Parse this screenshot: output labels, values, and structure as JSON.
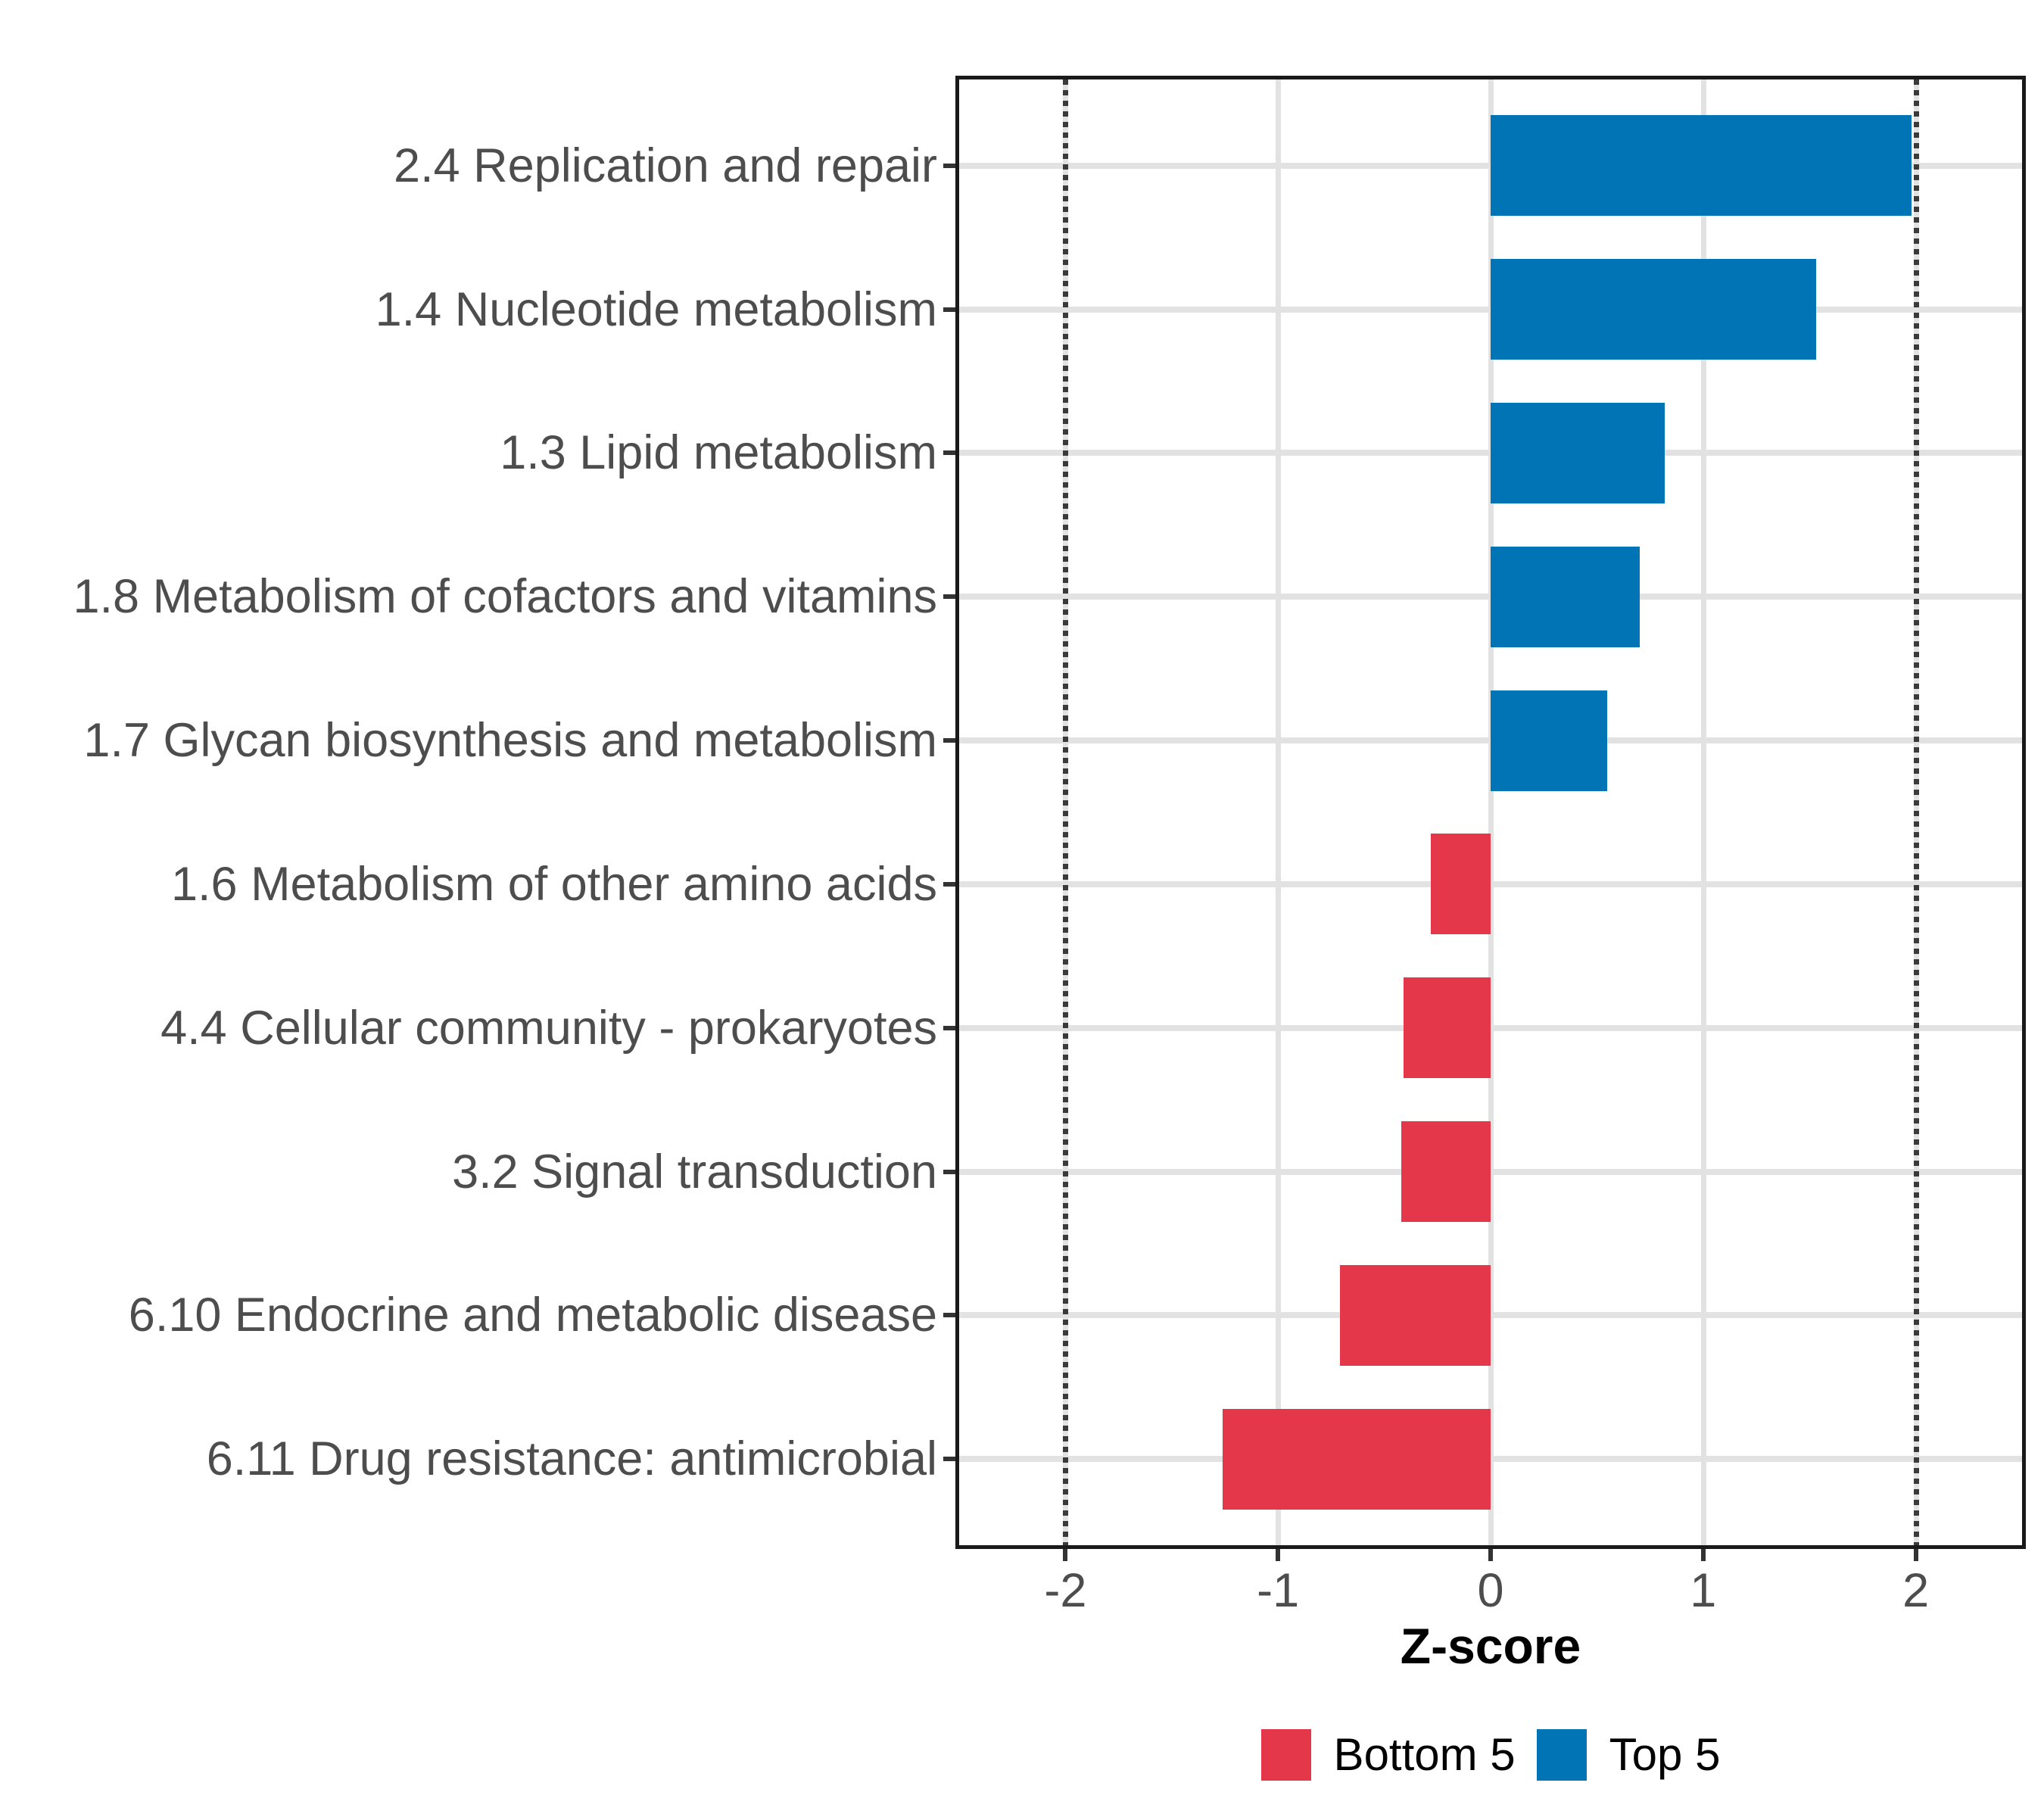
{
  "chart_data": {
    "type": "bar",
    "orientation": "horizontal",
    "title": "",
    "xlabel": "Z-score",
    "ylabel": "",
    "categories": [
      "2.4 Replication and repair",
      "1.4 Nucleotide metabolism",
      "1.3 Lipid metabolism",
      "1.8 Metabolism of cofactors and vitamins",
      "1.7 Glycan biosynthesis and metabolism",
      "1.6 Metabolism of other amino acids",
      "4.4 Cellular community - prokaryotes",
      "3.2 Signal transduction",
      "6.10 Endocrine and metabolic disease",
      "6.11 Drug resistance: antimicrobial"
    ],
    "values": [
      1.98,
      1.53,
      0.82,
      0.7,
      0.55,
      -0.28,
      -0.41,
      -0.42,
      -0.71,
      -1.26
    ],
    "groups": [
      "Top 5",
      "Top 5",
      "Top 5",
      "Top 5",
      "Top 5",
      "Bottom 5",
      "Bottom 5",
      "Bottom 5",
      "Bottom 5",
      "Bottom 5"
    ],
    "xlim": [
      -2.5,
      2.5
    ],
    "x_ticks": [
      -2,
      -1,
      0,
      1,
      2
    ],
    "x_tick_labels": [
      "-2",
      "-1",
      "0",
      "1",
      "2"
    ],
    "reference_lines": [
      -2,
      2
    ],
    "grid": true,
    "legend_position": "bottom",
    "legend": [
      {
        "label": "Bottom 5",
        "color": "#E4384A"
      },
      {
        "label": "Top 5",
        "color": "#0074B5"
      }
    ],
    "colors": {
      "bottom5": "#E4384A",
      "top5": "#0074B5",
      "grid": "#E2E2E2",
      "axis_text": "#4D4D4D",
      "panel_border": "#1A1A1A",
      "reference_line": "#3A3A3A",
      "tick_mark": "#333333"
    },
    "bar_width_fraction": 0.7
  }
}
